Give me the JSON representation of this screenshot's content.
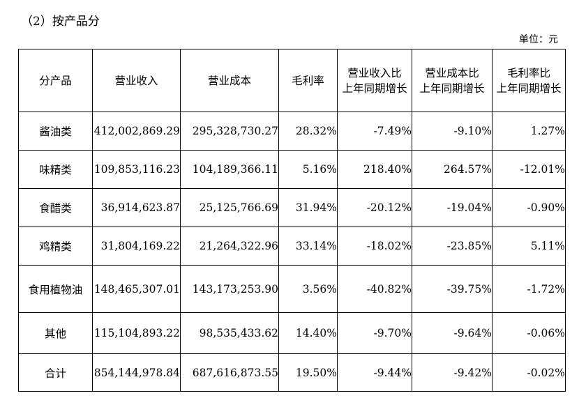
{
  "section_title": "（2）按产品分",
  "unit_note": "单位：元",
  "table": {
    "headers": [
      [
        "分产品"
      ],
      [
        "营业收入"
      ],
      [
        "营业成本"
      ],
      [
        "毛利率"
      ],
      [
        "营业收入比",
        "上年同期增长"
      ],
      [
        "营业成本比",
        "上年同期增长"
      ],
      [
        "毛利率比",
        "上年同期增长"
      ]
    ],
    "rows": [
      [
        "酱油类",
        "412,002,869.29",
        "295,328,730.27",
        "28.32%",
        "-7.49%",
        "-9.10%",
        "1.27%"
      ],
      [
        "味精类",
        "109,853,116.23",
        "104,189,366.11",
        "5.16%",
        "218.40%",
        "264.57%",
        "-12.01%"
      ],
      [
        "食醋类",
        "36,914,623.87",
        "25,125,766.69",
        "31.94%",
        "-20.12%",
        "-19.04%",
        "-0.90%"
      ],
      [
        "鸡精类",
        "31,804,169.22",
        "21,264,322.96",
        "33.14%",
        "-18.02%",
        "-23.85%",
        "5.11%"
      ],
      [
        "食用植物油",
        "148,465,307.01",
        "143,173,253.90",
        "3.56%",
        "-40.82%",
        "-39.75%",
        "-1.72%"
      ],
      [
        "其他",
        "115,104,893.22",
        "98,535,433.62",
        "14.40%",
        "-9.70%",
        "-9.64%",
        "-0.06%"
      ],
      [
        "合计",
        "854,144,978.84",
        "687,616,873.55",
        "19.50%",
        "-9.44%",
        "-9.42%",
        "-0.02%"
      ]
    ]
  }
}
